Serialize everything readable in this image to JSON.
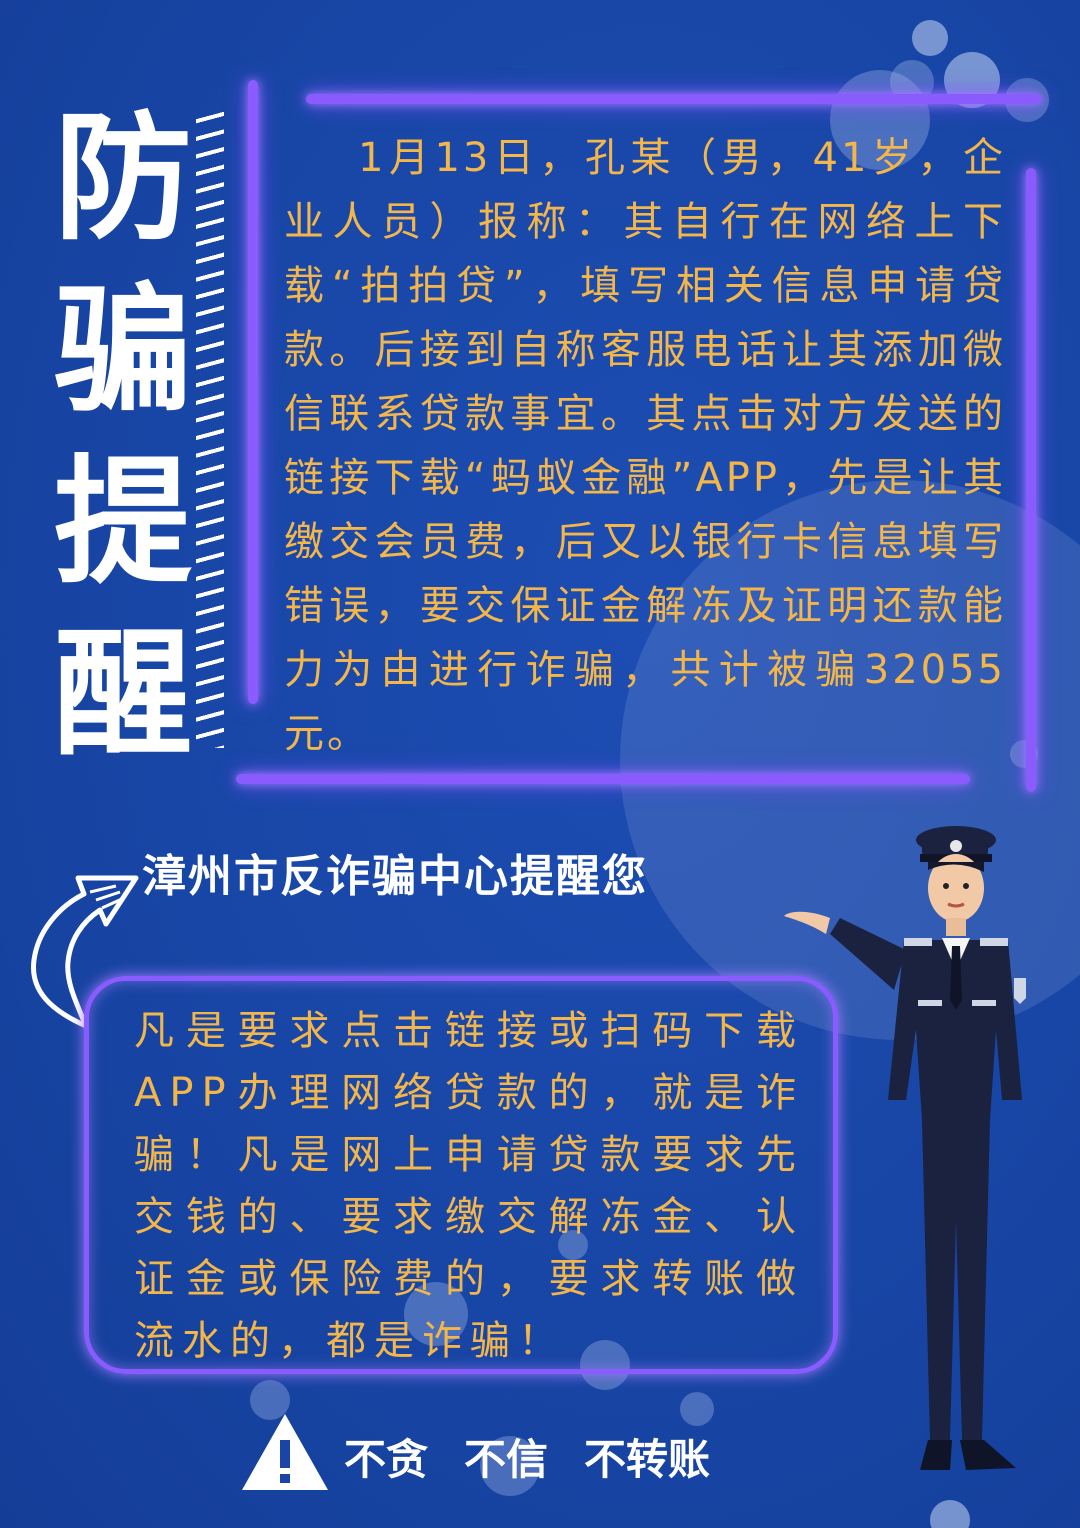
{
  "title_chars": [
    "防",
    "骗",
    "提",
    "醒"
  ],
  "story_text": "1月13日，孔某（男，41岁，企业人员）报称：其自行在网络上下载“拍拍贷”，填写相关信息申请贷款。后接到自称客服电话让其添加微信联系贷款事宜。其点击对方发送的链接下载“蚂蚁金融”APP，先是让其缴交会员费，后又以银行卡信息填写错误，要交保证金解冻及证明还款能力为由进行诈骗，共计被骗32055元。",
  "center_reminder": "漳州市反诈骗中心提醒您",
  "notice_text": "凡是要求点击链接或扫码下载APP办理网络贷款的，就是诈骗！凡是网上申请贷款要求先交钱的、要求缴交解冻金、认证金或保险费的，要求转账做流水的，都是诈骗！",
  "slogans": [
    "不贪",
    "不信",
    "不转账"
  ],
  "colors": {
    "background": "#1a45a6",
    "neon": "#8a5cff",
    "body_text": "#f2b64a",
    "title_text": "#ffffff"
  },
  "icons": [
    "curved-arrow-icon",
    "warning-icon",
    "police-officer-illustration"
  ]
}
